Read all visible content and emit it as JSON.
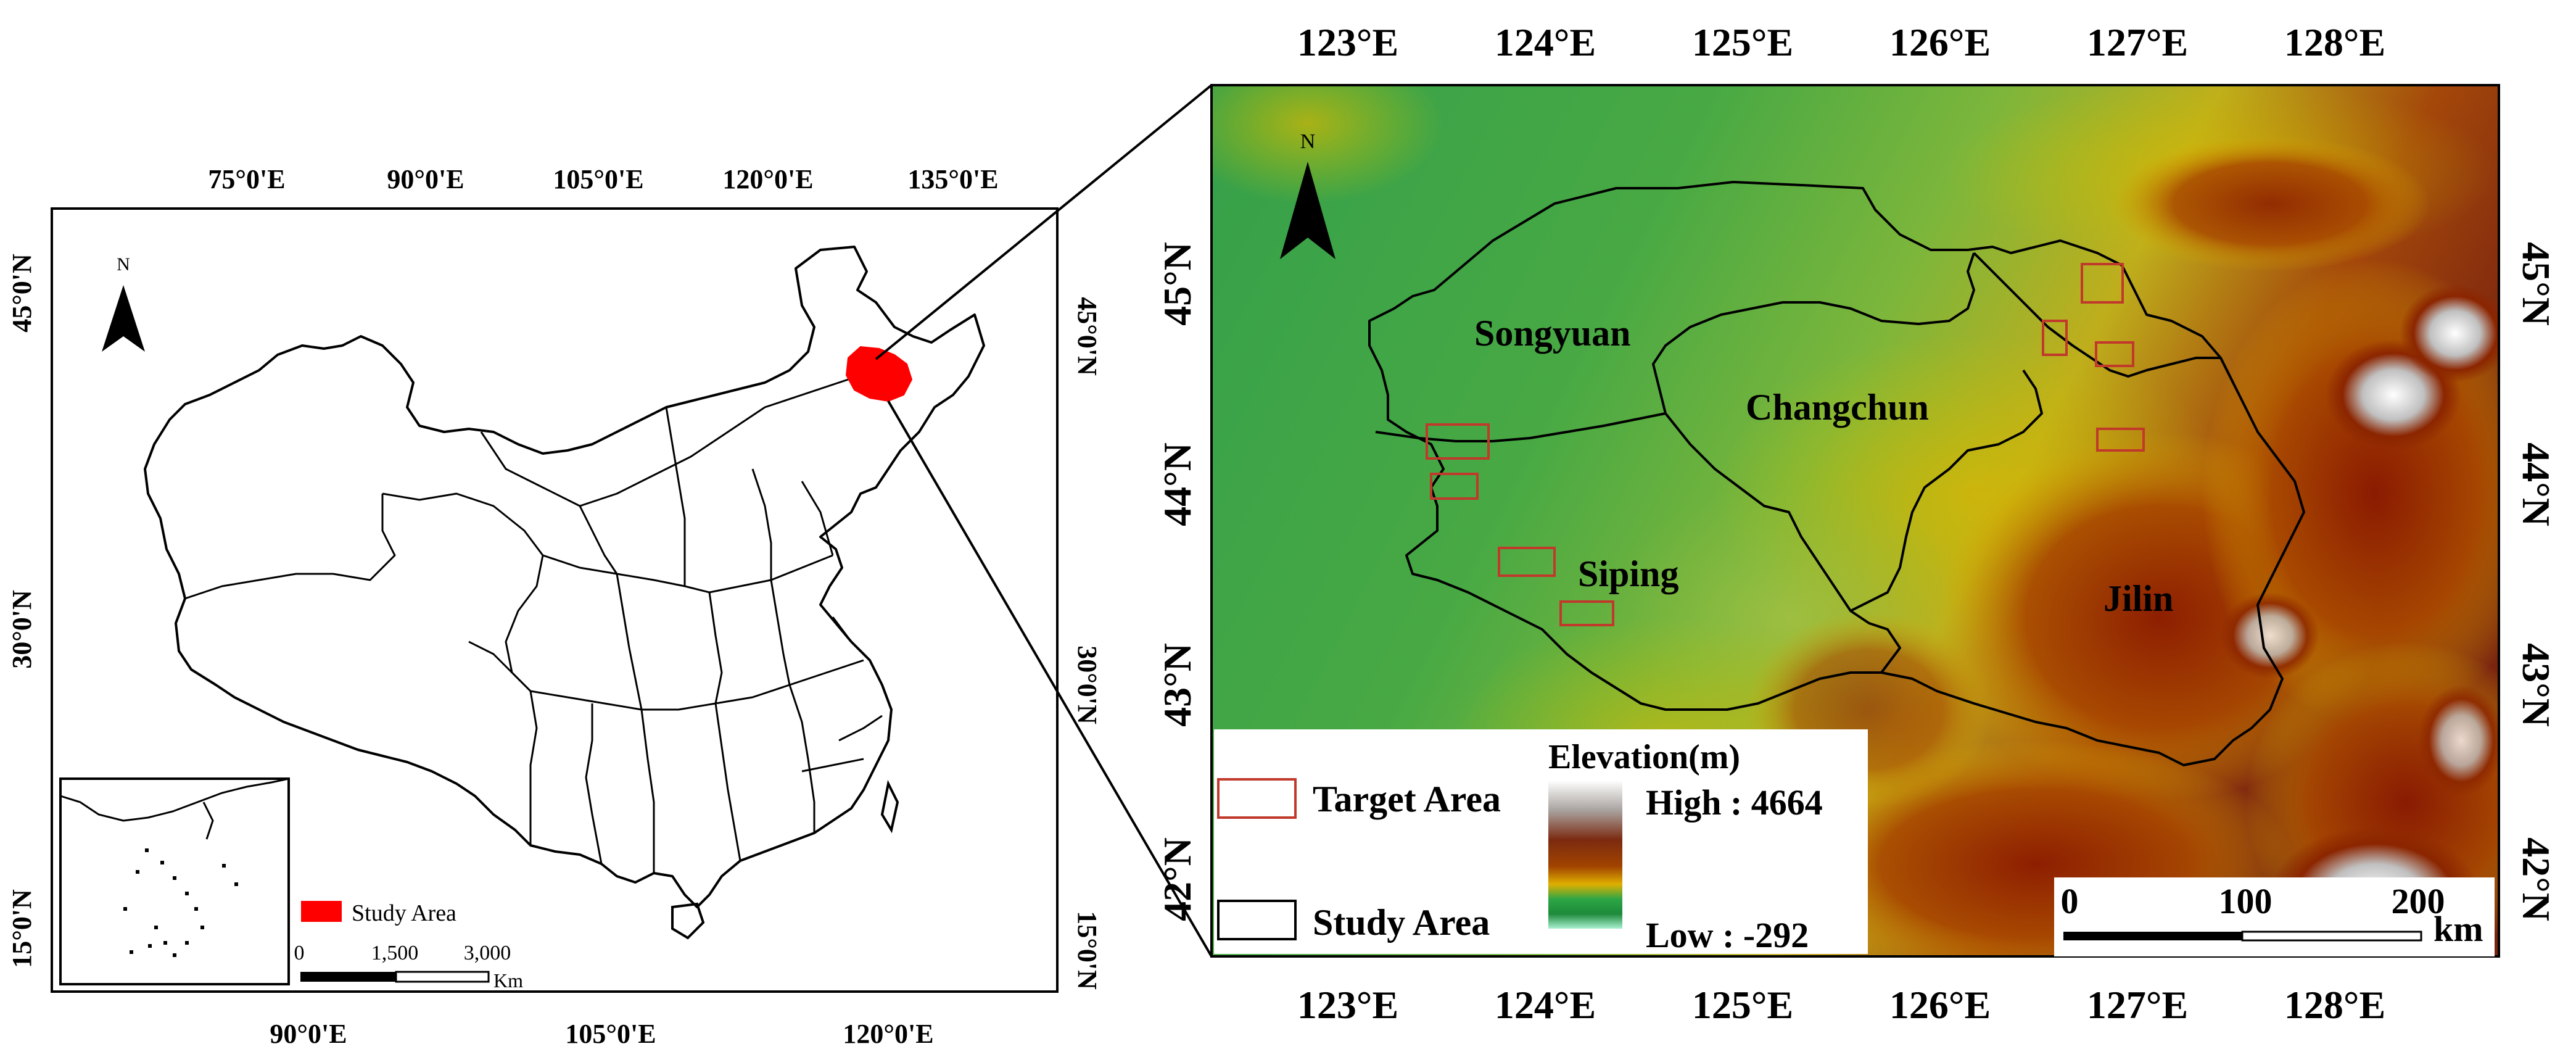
{
  "left_map": {
    "top_lon_labels": [
      "75°0'E",
      "90°0'E",
      "105°0'E",
      "120°0'E",
      "135°0'E"
    ],
    "bottom_lon_labels": [
      "90°0'E",
      "105°0'E",
      "120°0'E"
    ],
    "left_lat_labels": [
      "45°0'N",
      "30°0'N",
      "15°0'N"
    ],
    "right_lat_labels": [
      "45°0'N",
      "30°0'N",
      "15°0'N"
    ],
    "north_label": "N",
    "legend": {
      "study_area_label": "Study Area",
      "study_area_color": "#ff0000"
    },
    "scale": {
      "ticks": [
        "0",
        "1,500",
        "3,000"
      ],
      "unit": "Km"
    }
  },
  "right_map": {
    "top_lon_labels": [
      "123°E",
      "124°E",
      "125°E",
      "126°E",
      "127°E",
      "128°E"
    ],
    "bottom_lon_labels": [
      "123°E",
      "124°E",
      "125°E",
      "126°E",
      "127°E",
      "128°E"
    ],
    "left_lat_labels": [
      "45°N",
      "44°N",
      "43°N",
      "42°N"
    ],
    "right_lat_labels": [
      "45°N",
      "44°N",
      "43°N",
      "42°N"
    ],
    "north_label": "N",
    "city_labels": [
      "Songyuan",
      "Changchun",
      "Siping",
      "Jilin"
    ],
    "legend": {
      "target_area_label": "Target Area",
      "study_area_label": "Study Area",
      "elevation_title": "Elevation(m)",
      "high_label": "High : 4664",
      "low_label": "Low : -292",
      "target_color": "#c0392b"
    },
    "scale": {
      "ticks": [
        "0",
        "100",
        "200"
      ],
      "unit": "km"
    }
  }
}
